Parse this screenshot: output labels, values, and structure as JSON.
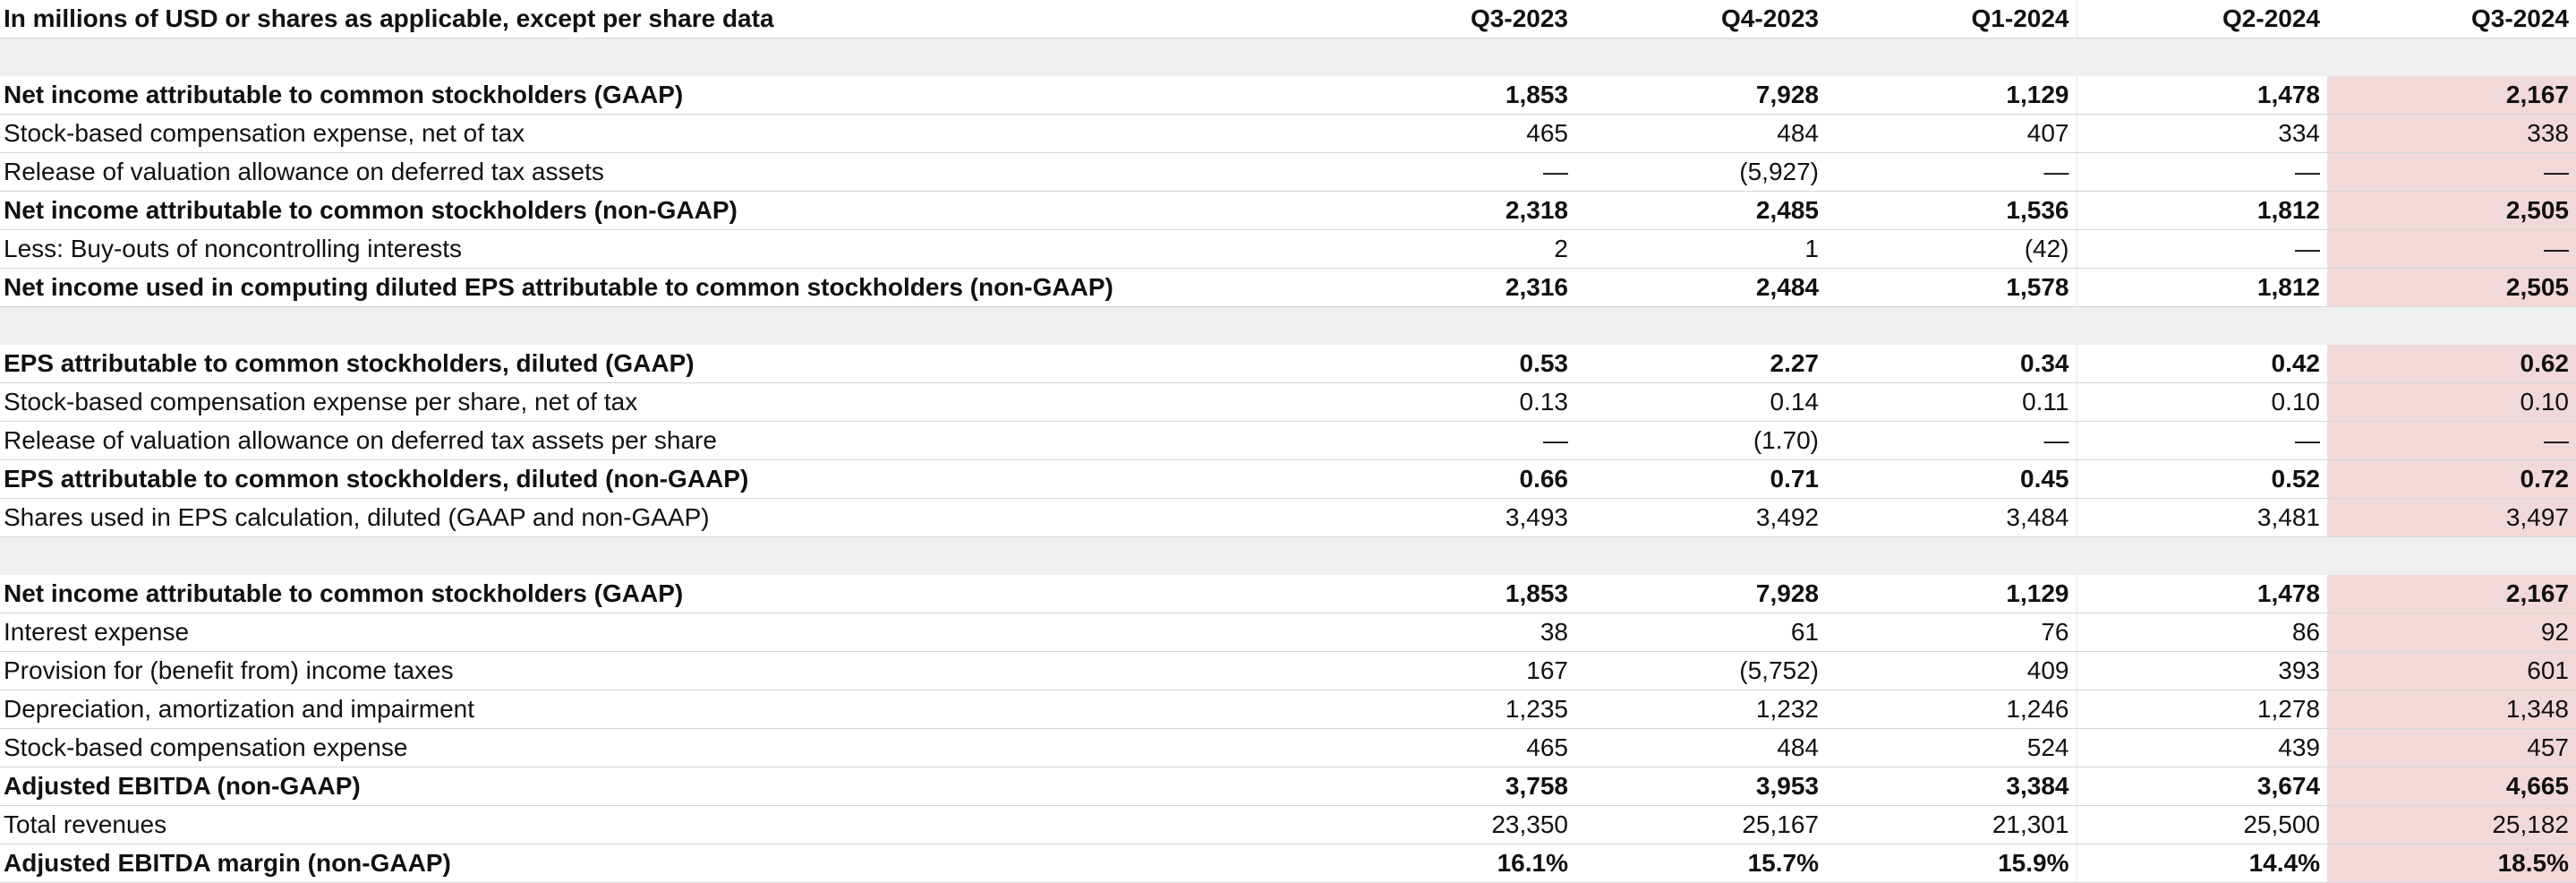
{
  "header": {
    "label": "In millions of USD or shares as applicable, except per share data",
    "columns": [
      "Q3-2023",
      "Q4-2023",
      "Q1-2024",
      "Q2-2024",
      "Q3-2024"
    ]
  },
  "highlight_color": "#f2d9d9",
  "sections": [
    {
      "rows": [
        {
          "label": "Net income attributable to common stockholders (GAAP)",
          "bold": true,
          "values": [
            "1,853",
            "7,928",
            "1,129",
            "1,478",
            "2,167"
          ]
        },
        {
          "label": "Stock-based compensation expense, net of tax",
          "bold": false,
          "values": [
            "465",
            "484",
            "407",
            "334",
            "338"
          ]
        },
        {
          "label": "Release of valuation allowance on deferred tax assets",
          "bold": false,
          "values": [
            "—",
            "(5,927)",
            "—",
            "—",
            "—"
          ]
        },
        {
          "label": "Net income attributable to common stockholders (non-GAAP)",
          "bold": true,
          "values": [
            "2,318",
            "2,485",
            "1,536",
            "1,812",
            "2,505"
          ]
        },
        {
          "label": "Less: Buy-outs of noncontrolling interests",
          "bold": false,
          "values": [
            "2",
            "1",
            "(42)",
            "—",
            "—"
          ]
        },
        {
          "label": "Net income used in computing diluted EPS attributable to common stockholders (non-GAAP)",
          "bold": true,
          "values": [
            "2,316",
            "2,484",
            "1,578",
            "1,812",
            "2,505"
          ]
        }
      ]
    },
    {
      "rows": [
        {
          "label": "EPS attributable to common stockholders, diluted (GAAP)",
          "bold": true,
          "values": [
            "0.53",
            "2.27",
            "0.34",
            "0.42",
            "0.62"
          ]
        },
        {
          "label": "Stock-based compensation expense per share, net of tax",
          "bold": false,
          "values": [
            "0.13",
            "0.14",
            "0.11",
            "0.10",
            "0.10"
          ]
        },
        {
          "label": "Release of valuation allowance on deferred tax assets per share",
          "bold": false,
          "values": [
            "—",
            "(1.70)",
            "—",
            "—",
            "—"
          ]
        },
        {
          "label": "EPS attributable to common stockholders, diluted (non-GAAP)",
          "bold": true,
          "values": [
            "0.66",
            "0.71",
            "0.45",
            "0.52",
            "0.72"
          ]
        },
        {
          "label": "Shares used in EPS calculation, diluted (GAAP and non-GAAP)",
          "bold": false,
          "values": [
            "3,493",
            "3,492",
            "3,484",
            "3,481",
            "3,497"
          ]
        }
      ]
    },
    {
      "rows": [
        {
          "label": "Net income attributable to common stockholders (GAAP)",
          "bold": true,
          "values": [
            "1,853",
            "7,928",
            "1,129",
            "1,478",
            "2,167"
          ]
        },
        {
          "label": "Interest expense",
          "bold": false,
          "values": [
            "38",
            "61",
            "76",
            "86",
            "92"
          ]
        },
        {
          "label": "Provision for (benefit from) income taxes",
          "bold": false,
          "values": [
            "167",
            "(5,752)",
            "409",
            "393",
            "601"
          ]
        },
        {
          "label": "Depreciation, amortization and impairment",
          "bold": false,
          "values": [
            "1,235",
            "1,232",
            "1,246",
            "1,278",
            "1,348"
          ]
        },
        {
          "label": "Stock-based compensation expense",
          "bold": false,
          "values": [
            "465",
            "484",
            "524",
            "439",
            "457"
          ]
        },
        {
          "label": "Adjusted EBITDA (non-GAAP)",
          "bold": true,
          "values": [
            "3,758",
            "3,953",
            "3,384",
            "3,674",
            "4,665"
          ]
        },
        {
          "label": "Total revenues",
          "bold": false,
          "values": [
            "23,350",
            "25,167",
            "21,301",
            "25,500",
            "25,182"
          ]
        },
        {
          "label": "Adjusted EBITDA margin (non-GAAP)",
          "bold": true,
          "values": [
            "16.1%",
            "15.7%",
            "15.9%",
            "14.4%",
            "18.5%"
          ]
        }
      ]
    }
  ]
}
